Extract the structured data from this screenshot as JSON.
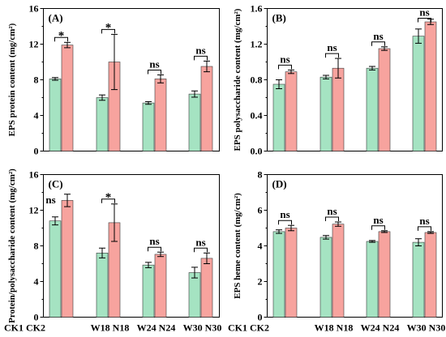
{
  "chart_data": [
    {
      "panel": "(A)",
      "type": "bar",
      "ylabel": "EPS protein content (mg/cm²)",
      "ylim": [
        0,
        16
      ],
      "yticks": [
        "0",
        "4",
        "8",
        "12",
        "16"
      ],
      "grid": false,
      "series": [
        {
          "color": "#a5e3c2",
          "values": [
            8.1,
            6.0,
            5.4,
            6.4
          ],
          "errors": [
            0.15,
            0.3,
            0.15,
            0.35
          ]
        },
        {
          "color": "#f7a39e",
          "values": [
            11.9,
            10.0,
            8.1,
            9.5
          ],
          "errors": [
            0.3,
            3.1,
            0.45,
            0.6
          ]
        }
      ],
      "significance": [
        "*",
        "*",
        "ns",
        "ns"
      ]
    },
    {
      "panel": "(B)",
      "type": "bar",
      "ylabel": "EPS polysaccharide content (mg/cm²)",
      "ylim": [
        0,
        1.6
      ],
      "yticks": [
        "0.0",
        "0.4",
        "0.8",
        "1.2",
        "1.6"
      ],
      "grid": false,
      "series": [
        {
          "color": "#a5e3c2",
          "values": [
            0.75,
            0.83,
            0.93,
            1.29
          ],
          "errors": [
            0.05,
            0.02,
            0.02,
            0.08
          ]
        },
        {
          "color": "#f7a39e",
          "values": [
            0.89,
            0.93,
            1.15,
            1.45
          ],
          "errors": [
            0.02,
            0.11,
            0.02,
            0.03
          ]
        }
      ],
      "significance": [
        "ns",
        "ns",
        "ns",
        "ns"
      ]
    },
    {
      "panel": "(C)",
      "type": "bar",
      "ylabel": "Protein/polysaccharide content (mg/cm²)",
      "ylim": [
        0,
        16
      ],
      "yticks": [
        "0",
        "4",
        "8",
        "12",
        "16"
      ],
      "grid": false,
      "categories": [
        "CK1 CK2",
        "W18 N18",
        "W24 N24",
        "W30 N30"
      ],
      "series": [
        {
          "color": "#a5e3c2",
          "values": [
            10.8,
            7.2,
            5.85,
            5.0
          ],
          "errors": [
            0.45,
            0.55,
            0.3,
            0.6
          ]
        },
        {
          "color": "#f7a39e",
          "values": [
            13.1,
            10.6,
            7.05,
            6.6
          ],
          "errors": [
            0.7,
            2.1,
            0.25,
            0.6
          ]
        }
      ],
      "significance": [
        "ns",
        "*",
        "ns",
        "ns"
      ]
    },
    {
      "panel": "(D)",
      "type": "bar",
      "ylabel": "EPS heme content (mg/cm²)",
      "ylim": [
        0,
        8
      ],
      "yticks": [
        "0",
        "2",
        "4",
        "6",
        "8"
      ],
      "grid": false,
      "categories": [
        "CK1 CK2",
        "W18 N18",
        "W24 N24",
        "W30 N30"
      ],
      "series": [
        {
          "color": "#a5e3c2",
          "values": [
            4.8,
            4.48,
            4.25,
            4.2
          ],
          "errors": [
            0.1,
            0.1,
            0.05,
            0.2
          ]
        },
        {
          "color": "#f7a39e",
          "values": [
            5.0,
            5.22,
            4.8,
            4.75
          ],
          "errors": [
            0.15,
            0.12,
            0.05,
            0.05
          ]
        }
      ],
      "significance": [
        "ns",
        "ns",
        "ns",
        "ns"
      ]
    }
  ]
}
